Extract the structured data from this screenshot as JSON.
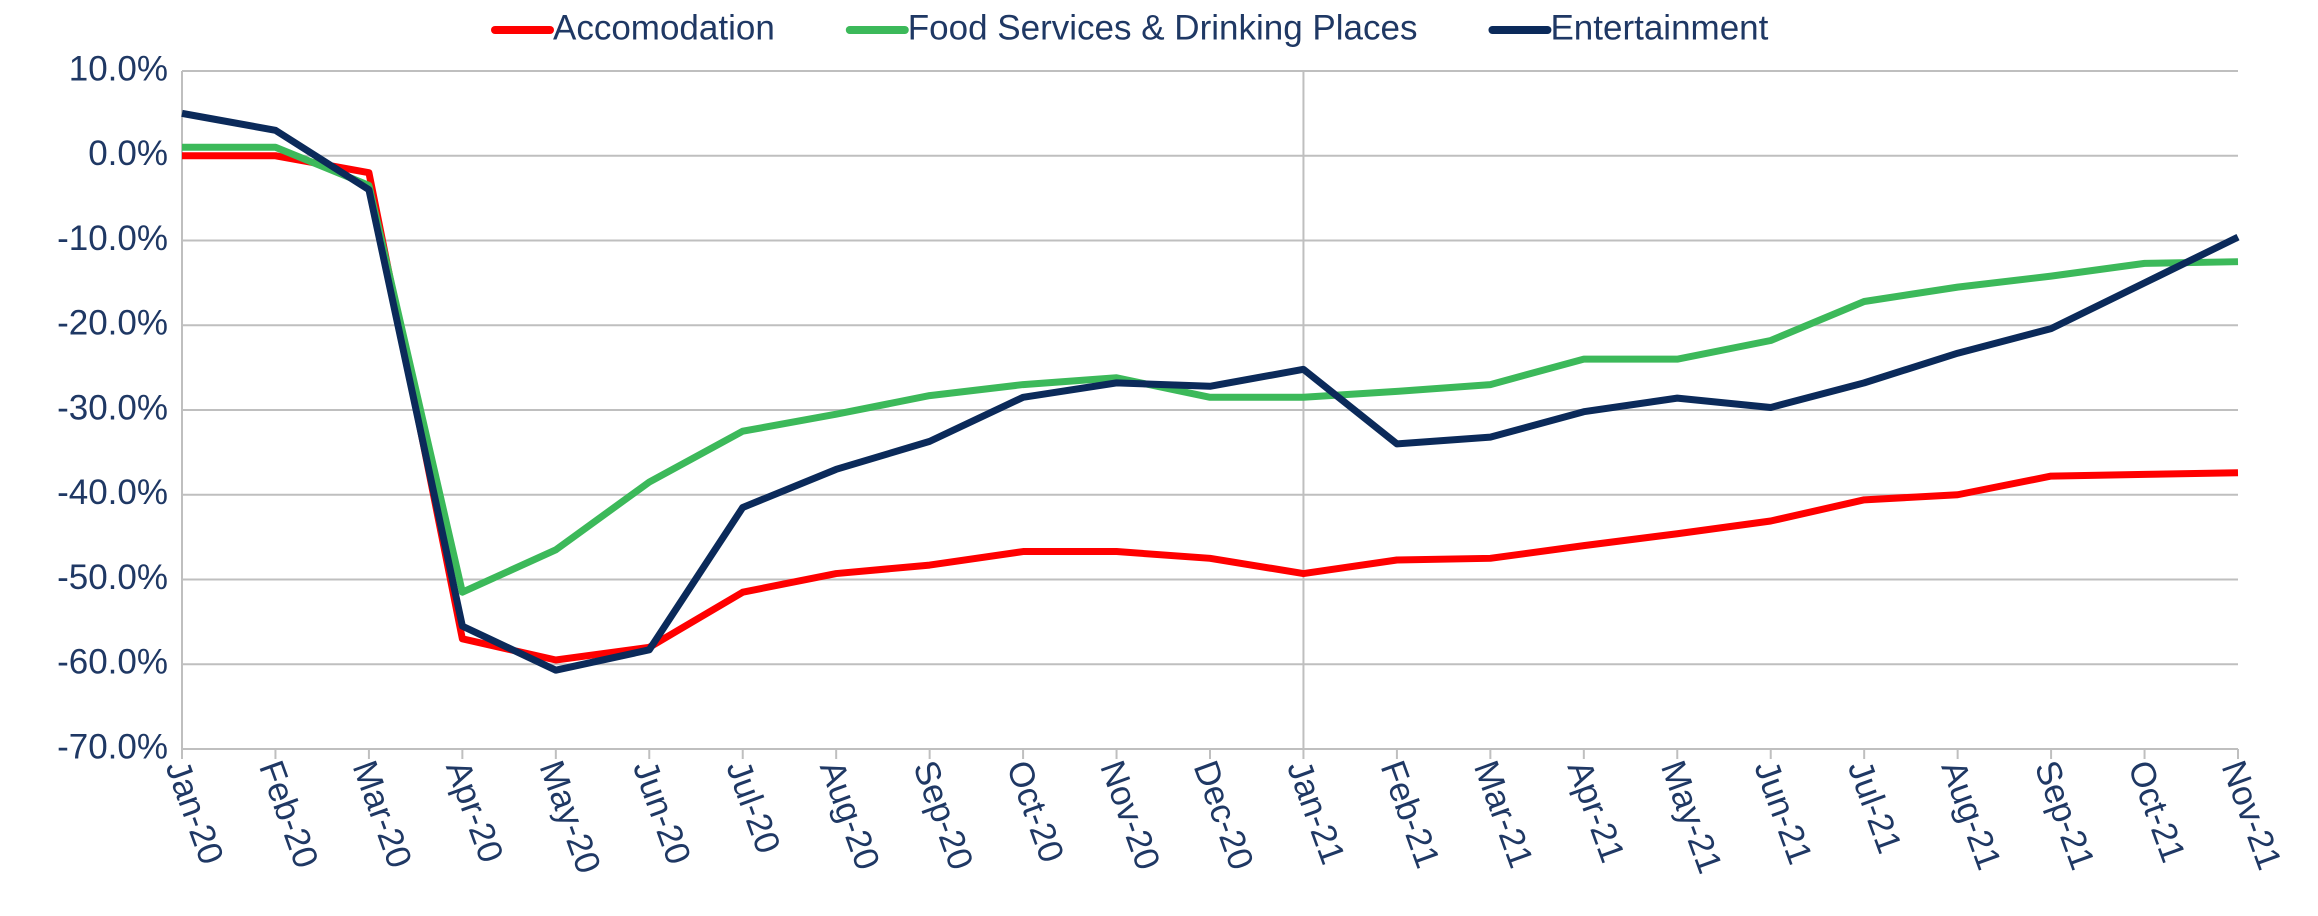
{
  "chart_data": {
    "type": "line",
    "categories": [
      "Jan-20",
      "Feb-20",
      "Mar-20",
      "Apr-20",
      "May-20",
      "Jun-20",
      "Jul-20",
      "Aug-20",
      "Sep-20",
      "Oct-20",
      "Nov-20",
      "Dec-20",
      "Jan-21",
      "Feb-21",
      "Mar-21",
      "Apr-21",
      "May-21",
      "Jun-21",
      "Jul-21",
      "Aug-21",
      "Sep-21",
      "Oct-21",
      "Nov-21"
    ],
    "series": [
      {
        "name": "Accomodation",
        "color": "#ff0000",
        "values": [
          0,
          0,
          -2,
          -57,
          -59.5,
          -58,
          -51.5,
          -49.3,
          -48.3,
          -46.7,
          -46.7,
          -47.5,
          -49.3,
          -47.7,
          -47.5,
          -46,
          -44.6,
          -43.1,
          -40.6,
          -40,
          -37.8,
          -37.6,
          -37.4
        ]
      },
      {
        "name": "Food Services & Drinking Places",
        "color": "#3cb95a",
        "values": [
          1,
          1,
          -3.5,
          -51.5,
          -46.5,
          -38.5,
          -32.5,
          -30.5,
          -28.3,
          -27,
          -26.2,
          -28.5,
          -28.5,
          -27.8,
          -27,
          -24,
          -24,
          -21.8,
          -17.2,
          -15.5,
          -14.2,
          -12.7,
          -12.5
        ]
      },
      {
        "name": "Entertainment",
        "color": "#0b2a5a",
        "values": [
          5,
          3,
          -4,
          -55.5,
          -60.7,
          -58.3,
          -41.5,
          -37,
          -33.7,
          -28.5,
          -26.8,
          -27.2,
          -25.2,
          -34,
          -33.2,
          -30.2,
          -28.6,
          -29.7,
          -26.8,
          -23.3,
          -20.4,
          -15,
          -9.6
        ]
      }
    ],
    "ylim": [
      -70,
      10
    ],
    "yticks": [
      {
        "value": 10,
        "label": "10.0%"
      },
      {
        "value": 0,
        "label": "0.0%"
      },
      {
        "value": -10,
        "label": "-10.0%"
      },
      {
        "value": -20,
        "label": "-20.0%"
      },
      {
        "value": -30,
        "label": "-30.0%"
      },
      {
        "value": -40,
        "label": "-40.0%"
      },
      {
        "value": -50,
        "label": "-50.0%"
      },
      {
        "value": -60,
        "label": "-60.0%"
      },
      {
        "value": -70,
        "label": "-70.0%"
      }
    ],
    "grid": true,
    "legend": "top"
  }
}
